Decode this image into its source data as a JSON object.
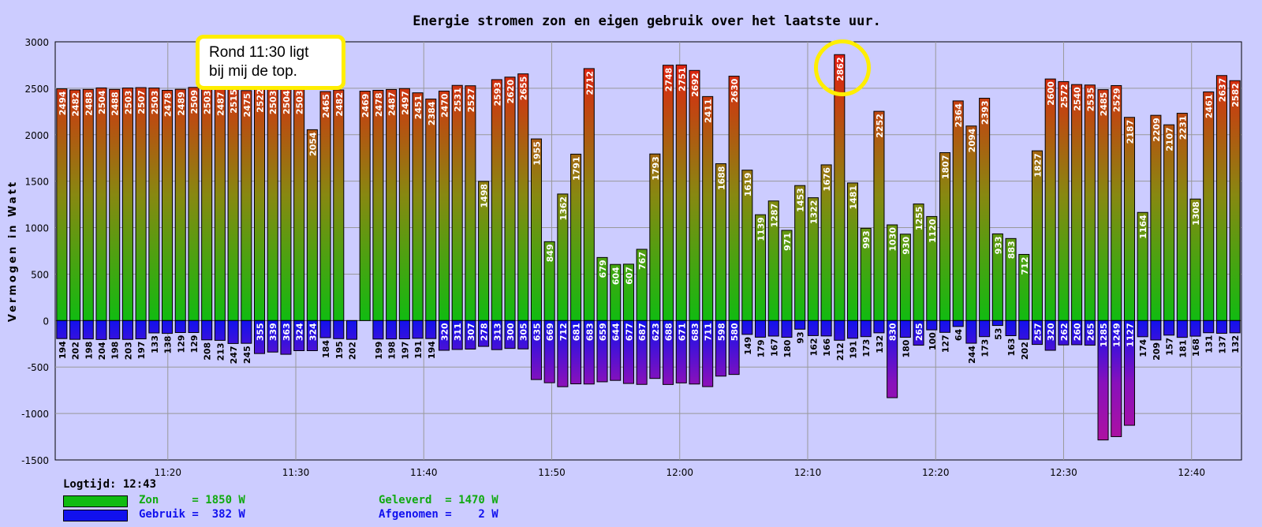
{
  "legend": {
    "logtijd_label": "Logtijd:",
    "logtijd_value": "12:43",
    "zon_text": "Zon     = 1850 W",
    "gebruik_text": "Gebruik =  382 W",
    "geleverd_text": "Geleverd  = 1470 W",
    "afgenomen_text": "Afgenomen =    2 W"
  },
  "callout": {
    "line1": "Rond 11:30 ligt",
    "line2": "bij mij de top."
  },
  "colors": {
    "background": "#ccccff",
    "zon_top": "#ee1111",
    "zon_bottom": "#11bb11",
    "gebruik_top": "#1111ee",
    "gebruik_bottom": "#aa11aa",
    "zon_legend": "#11bb11",
    "gebruik_legend": "#1111ee",
    "highlight": "#ffee00"
  },
  "chart_data": {
    "type": "bar",
    "title": "Energie stromen zon en eigen gebruik over het laatste uur.",
    "ylabel": "Vermogen in Watt",
    "xlabel": "",
    "ylim": [
      -1500,
      3000
    ],
    "yticks": [
      3000,
      2500,
      2000,
      1500,
      1000,
      500,
      0,
      -500,
      -1000,
      -1500
    ],
    "xticks": [
      "11:20",
      "11:30",
      "11:40",
      "11:50",
      "12:00",
      "12:10",
      "12:20",
      "12:30",
      "12:40"
    ],
    "xtick_minutes": [
      20,
      30,
      40,
      50,
      60,
      70,
      80,
      90,
      100
    ],
    "x_start_minute": 11.2,
    "x_end_minute": 103.9,
    "grid": true,
    "series": [
      {
        "name": "Zon",
        "values": [
          2494,
          2482,
          2488,
          2504,
          2488,
          2503,
          2507,
          2503,
          2478,
          2489,
          2509,
          2503,
          2487,
          2515,
          2475,
          2522,
          2503,
          2504,
          2503,
          2054,
          2465,
          2482,
          null,
          2469,
          2478,
          2487,
          2497,
          2451,
          2384,
          2470,
          2531,
          2527,
          1498,
          2593,
          2620,
          2655,
          1955,
          849,
          1362,
          1791,
          2712,
          679,
          604,
          607,
          767,
          1793,
          2748,
          2751,
          2692,
          2411,
          1688,
          2630,
          1619,
          1139,
          1287,
          971,
          1453,
          1322,
          1676,
          2862,
          1481,
          993,
          2252,
          1030,
          930,
          1255,
          1120,
          1807,
          2364,
          2094,
          2393,
          933,
          883,
          712,
          1827,
          2600,
          2572,
          2540,
          2535,
          2485,
          2529,
          2187,
          1164,
          2209,
          2107,
          2231,
          1308,
          2461,
          2637,
          2582
        ]
      },
      {
        "name": "Gebruik",
        "values": [
          194,
          202,
          198,
          204,
          198,
          203,
          197,
          133,
          138,
          129,
          129,
          208,
          213,
          247,
          245,
          355,
          339,
          363,
          324,
          324,
          184,
          195,
          202,
          null,
          199,
          198,
          197,
          191,
          194,
          320,
          311,
          307,
          278,
          313,
          300,
          305,
          635,
          669,
          712,
          681,
          683,
          659,
          644,
          677,
          687,
          623,
          688,
          671,
          683,
          711,
          598,
          580,
          149,
          179,
          167,
          180,
          93,
          162,
          166,
          212,
          191,
          173,
          132,
          830,
          180,
          265,
          100,
          127,
          64,
          244,
          173,
          53,
          163,
          202,
          257,
          320,
          262,
          260,
          265,
          1285,
          1249,
          1127,
          174,
          209,
          157,
          181,
          168,
          131,
          137,
          132
        ]
      }
    ]
  }
}
